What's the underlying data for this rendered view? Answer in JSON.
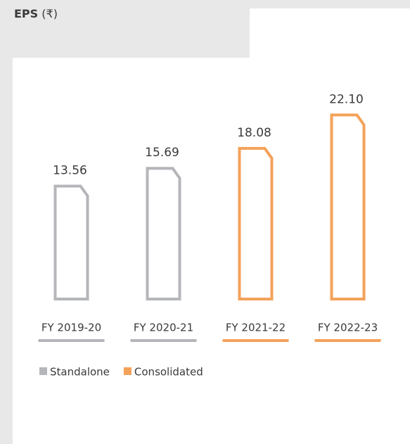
{
  "chart_data": {
    "type": "bar",
    "title": "EPS",
    "unit": "(₹)",
    "categories": [
      "FY 2019-20",
      "FY 2020-21",
      "FY 2021-22",
      "FY 2022-23"
    ],
    "series": [
      {
        "name": "Standalone",
        "color": "#b4b6b9",
        "values": [
          13.56,
          15.69,
          null,
          null
        ],
        "value_labels": [
          "13.56",
          "15.69",
          null,
          null
        ]
      },
      {
        "name": "Consolidated",
        "color": "#f4a25a",
        "values": [
          null,
          null,
          18.08,
          22.1
        ],
        "value_labels": [
          null,
          null,
          "18.08",
          "22.10"
        ]
      }
    ],
    "ylim": [
      0,
      25
    ]
  }
}
